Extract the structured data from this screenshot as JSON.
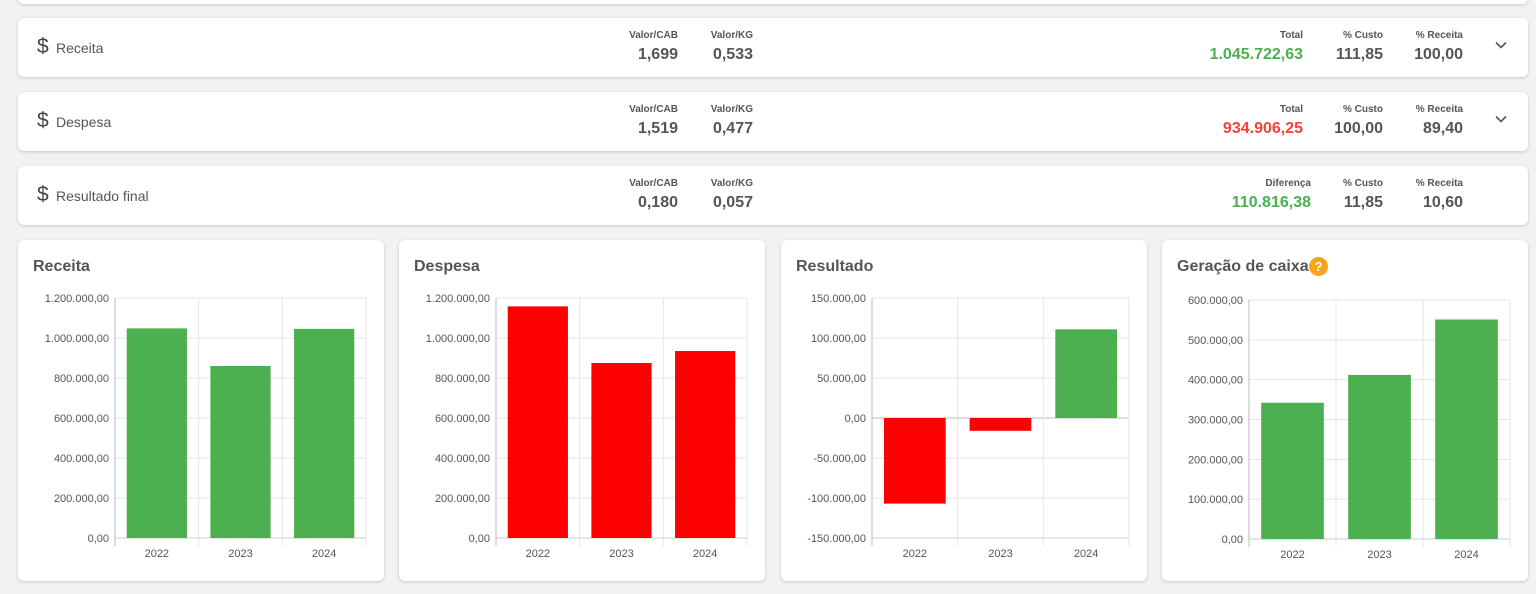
{
  "rows": [
    {
      "label": "Receita",
      "valor_cab_label": "Valor/CAB",
      "valor_cab": "1,699",
      "valor_kg_label": "Valor/KG",
      "valor_kg": "0,533",
      "total_label": "Total",
      "total": "1.045.722,63",
      "total_color": "#4caf50",
      "custo_label": "% Custo",
      "custo": "111,85",
      "receita_label": "% Receita",
      "receita": "100,00",
      "expandable": true
    },
    {
      "label": "Despesa",
      "valor_cab_label": "Valor/CAB",
      "valor_cab": "1,519",
      "valor_kg_label": "Valor/KG",
      "valor_kg": "0,477",
      "total_label": "Total",
      "total": "934.906,25",
      "total_color": "#f44336",
      "custo_label": "% Custo",
      "custo": "100,00",
      "receita_label": "% Receita",
      "receita": "89,40",
      "expandable": true
    },
    {
      "label": "Resultado final",
      "valor_cab_label": "Valor/CAB",
      "valor_cab": "0,180",
      "valor_kg_label": "Valor/KG",
      "valor_kg": "0,057",
      "total_label": "Diferença",
      "total": "110.816,38",
      "total_color": "#4caf50",
      "custo_label": "% Custo",
      "custo": "11,85",
      "receita_label": "% Receita",
      "receita": "10,60",
      "expandable": false
    }
  ],
  "icons": {
    "currency": "dollar-icon",
    "expand": "chevron-down-icon",
    "help": "question-circle-icon"
  },
  "colors": {
    "green": "#4caf50",
    "red": "#ff0000",
    "help": "#f4a51c"
  },
  "chart_data": [
    {
      "type": "bar",
      "title": "Receita",
      "categories": [
        "2022",
        "2023",
        "2024"
      ],
      "values": [
        1048000,
        860000,
        1045722.63
      ],
      "bar_colors": [
        "#4caf50",
        "#4caf50",
        "#4caf50"
      ],
      "ylim": [
        0,
        1200000
      ],
      "yticks": [
        0,
        200000,
        400000,
        600000,
        800000,
        1000000,
        1200000
      ],
      "ytick_labels": [
        "0,00",
        "200.000,00",
        "400.000,00",
        "600.000,00",
        "800.000,00",
        "1.000.000,00",
        "1.200.000,00"
      ],
      "grid": true,
      "has_help": false
    },
    {
      "type": "bar",
      "title": "Despesa",
      "categories": [
        "2022",
        "2023",
        "2024"
      ],
      "values": [
        1158000,
        875000,
        934906.25
      ],
      "bar_colors": [
        "#ff0000",
        "#ff0000",
        "#ff0000"
      ],
      "ylim": [
        0,
        1200000
      ],
      "yticks": [
        0,
        200000,
        400000,
        600000,
        800000,
        1000000,
        1200000
      ],
      "ytick_labels": [
        "0,00",
        "200.000,00",
        "400.000,00",
        "600.000,00",
        "800.000,00",
        "1.000.000,00",
        "1.200.000,00"
      ],
      "grid": true,
      "has_help": false
    },
    {
      "type": "bar",
      "title": "Resultado",
      "categories": [
        "2022",
        "2023",
        "2024"
      ],
      "values": [
        -107000,
        -16000,
        110816.38
      ],
      "bar_colors": [
        "#ff0000",
        "#ff0000",
        "#4caf50"
      ],
      "ylim": [
        -150000,
        150000
      ],
      "yticks": [
        -150000,
        -100000,
        -50000,
        0,
        50000,
        100000,
        150000
      ],
      "ytick_labels": [
        "-150.000,00",
        "-100.000,00",
        "-50.000,00",
        "0,00",
        "50.000,00",
        "100.000,00",
        "150.000,00"
      ],
      "grid": true,
      "has_help": false
    },
    {
      "type": "bar",
      "title": "Geração de caixa",
      "categories": [
        "2022",
        "2023",
        "2024"
      ],
      "values": [
        342000,
        412000,
        551000
      ],
      "bar_colors": [
        "#4caf50",
        "#4caf50",
        "#4caf50"
      ],
      "ylim": [
        0,
        600000
      ],
      "yticks": [
        0,
        100000,
        200000,
        300000,
        400000,
        500000,
        600000
      ],
      "ytick_labels": [
        "0,00",
        "100.000,00",
        "200.000,00",
        "300.000,00",
        "400.000,00",
        "500.000,00",
        "600.000,00"
      ],
      "grid": true,
      "has_help": true
    }
  ]
}
